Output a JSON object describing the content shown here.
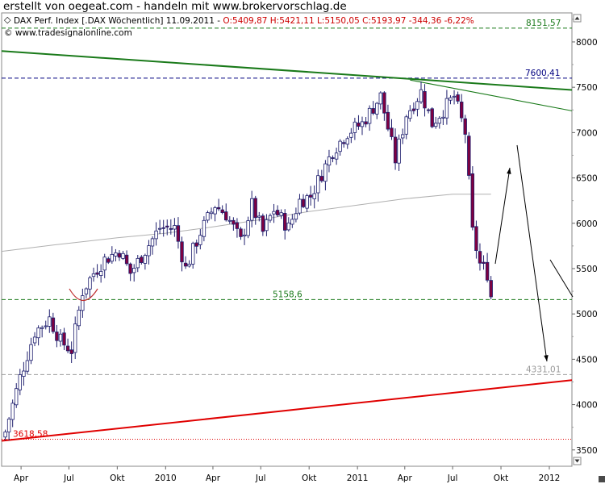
{
  "banner": "erstellt von oegeat.com - handeln mit www.brokervorschlag.de",
  "header": {
    "instrument": "DAX Perf. Index [.DAX  Wöchentlich] 11.09.2011 - ",
    "ohlc": "O:5409,87 H:5421,11 L:5150,05 C:5193,97 -344,36 -6,22%",
    "copyright": "© www.tradesignalonline.com"
  },
  "colors": {
    "up_candle": "#ffffff",
    "down_candle": "#800040",
    "candle_outline": "#1f1f6e",
    "green": "#1a7a1a",
    "red": "#e00000",
    "ma": "#b0b0b0"
  },
  "chart_data": {
    "type": "candlestick",
    "y_axis": {
      "ylim": [
        3320,
        8320
      ],
      "ticks": [
        3500,
        4000,
        4500,
        5000,
        5500,
        6000,
        6500,
        7000,
        7500,
        8000
      ],
      "position": "right"
    },
    "x_axis": {
      "xlim": [
        "2009-02-23",
        "2012-02-13"
      ],
      "ticks": [
        {
          "label": "Apr",
          "date": "2009-04-01"
        },
        {
          "label": "Jul",
          "date": "2009-07-01"
        },
        {
          "label": "Okt",
          "date": "2009-10-01"
        },
        {
          "label": "2010",
          "date": "2010-01-01"
        },
        {
          "label": "Apr",
          "date": "2010-04-01"
        },
        {
          "label": "Jul",
          "date": "2010-07-01"
        },
        {
          "label": "Okt",
          "date": "2010-10-01"
        },
        {
          "label": "2011",
          "date": "2011-01-01"
        },
        {
          "label": "Apr",
          "date": "2011-04-01"
        },
        {
          "label": "Jul",
          "date": "2011-07-01"
        },
        {
          "label": "Okt",
          "date": "2011-10-01"
        },
        {
          "label": "2012",
          "date": "2012-01-01"
        }
      ]
    },
    "series": [
      {
        "anchor_closes": [
          [
            "2009-03-02",
            3700
          ],
          [
            "2009-03-30",
            4300
          ],
          [
            "2009-04-27",
            4800
          ],
          [
            "2009-05-25",
            4950
          ],
          [
            "2009-06-15",
            4700
          ],
          [
            "2009-07-06",
            4600
          ],
          [
            "2009-07-27",
            5250
          ],
          [
            "2009-08-17",
            5450
          ],
          [
            "2009-09-07",
            5600
          ],
          [
            "2009-10-05",
            5700
          ],
          [
            "2009-10-26",
            5450
          ],
          [
            "2009-11-23",
            5700
          ],
          [
            "2009-12-21",
            5950
          ],
          [
            "2010-01-18",
            5950
          ],
          [
            "2010-02-08",
            5500
          ],
          [
            "2010-03-08",
            5900
          ],
          [
            "2010-04-05",
            6200
          ],
          [
            "2010-04-26",
            6100
          ],
          [
            "2010-05-24",
            5800
          ],
          [
            "2010-06-14",
            6200
          ],
          [
            "2010-07-05",
            5900
          ],
          [
            "2010-07-26",
            6150
          ],
          [
            "2010-08-23",
            5950
          ],
          [
            "2010-09-13",
            6250
          ],
          [
            "2010-10-04",
            6300
          ],
          [
            "2010-10-25",
            6550
          ],
          [
            "2010-11-15",
            6800
          ],
          [
            "2010-12-13",
            7000
          ],
          [
            "2011-01-10",
            7100
          ],
          [
            "2011-02-14",
            7400
          ],
          [
            "2011-03-14",
            6700
          ],
          [
            "2011-04-04",
            7200
          ],
          [
            "2011-05-02",
            7450
          ],
          [
            "2011-05-23",
            7100
          ],
          [
            "2011-06-13",
            7250
          ],
          [
            "2011-07-04",
            7400
          ],
          [
            "2011-07-25",
            7000
          ],
          [
            "2011-08-08",
            5900
          ],
          [
            "2011-08-22",
            5550
          ],
          [
            "2011-09-05",
            5450
          ],
          [
            "2011-09-12",
            5194
          ]
        ]
      }
    ],
    "levels": [
      {
        "label": "8151,57",
        "value": 8151.57
      },
      {
        "label": "7600,41",
        "value": 7600.41
      },
      {
        "label": "5158,6",
        "value": 5158.6
      },
      {
        "label": "4331,01",
        "value": 4331.01
      },
      {
        "label": "3618,58",
        "value": 3618.58
      }
    ],
    "trendlines": [
      {
        "name": "green-resistance",
        "from": [
          "2009-02-23",
          7900
        ],
        "to": [
          "2012-02-13",
          7470
        ]
      },
      {
        "name": "green-short",
        "from": [
          "2011-04-11",
          7580
        ],
        "to": [
          "2012-02-13",
          7240
        ]
      },
      {
        "name": "red-support",
        "from": [
          "2009-02-23",
          3600
        ],
        "to": [
          "2012-02-13",
          4270
        ]
      }
    ],
    "moving_average": [
      [
        "2009-02-23",
        5690
      ],
      [
        "2009-06-01",
        5760
      ],
      [
        "2009-10-01",
        5840
      ],
      [
        "2010-01-01",
        5890
      ],
      [
        "2010-04-01",
        5960
      ],
      [
        "2010-07-01",
        6040
      ],
      [
        "2010-10-01",
        6130
      ],
      [
        "2011-01-01",
        6200
      ],
      [
        "2011-04-01",
        6270
      ],
      [
        "2011-07-01",
        6320
      ],
      [
        "2011-09-12",
        6320
      ]
    ]
  }
}
